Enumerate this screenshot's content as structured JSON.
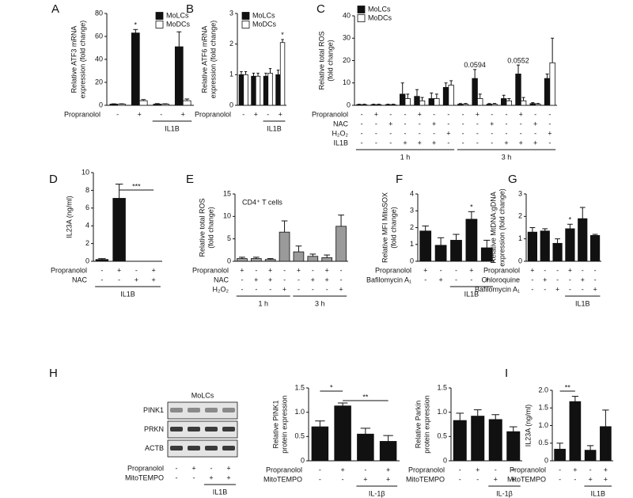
{
  "chart_data": [
    {
      "type": "bar",
      "panel": "A",
      "ylabel": [
        "Relative ATF3 mRNA",
        "expression (fold change)"
      ],
      "ylim": [
        0,
        80
      ],
      "yticks": [
        0,
        20,
        40,
        60,
        80
      ],
      "series": [
        {
          "name": "MoLCs",
          "color": "#111111",
          "values": [
            1,
            63,
            1,
            51
          ],
          "errors": [
            0.3,
            3,
            0.5,
            13
          ]
        },
        {
          "name": "MoDCs",
          "color": "#ffffff",
          "values": [
            1,
            4,
            1,
            4
          ],
          "errors": [
            0.3,
            1,
            0.3,
            1.5
          ]
        }
      ],
      "conditions": [
        {
          "name": "Propranolol",
          "signs": [
            "-",
            "+",
            "-",
            "+"
          ]
        }
      ],
      "groups": [
        "IL1B"
      ],
      "annotations": [
        "*"
      ]
    },
    {
      "type": "bar",
      "panel": "B",
      "ylabel": [
        "Relative ATF6 mRNA",
        "expression (fold change)"
      ],
      "ylim": [
        0,
        3
      ],
      "yticks": [
        0,
        1,
        2,
        3
      ],
      "series": [
        {
          "name": "MoLCs",
          "color": "#111111",
          "values": [
            1,
            0.95,
            0.95,
            1
          ],
          "errors": [
            0.1,
            0.1,
            0.1,
            0.15
          ]
        },
        {
          "name": "MoDCs",
          "color": "#ffffff",
          "values": [
            1,
            0.95,
            1.05,
            2.05
          ],
          "errors": [
            0.1,
            0.1,
            0.15,
            0.1
          ]
        }
      ],
      "conditions": [
        {
          "name": "Propranolol",
          "signs": [
            "-",
            "+",
            "-",
            "+"
          ]
        }
      ],
      "groups": [
        "IL1B"
      ],
      "annotations": [
        "*"
      ]
    },
    {
      "type": "bar",
      "panel": "C",
      "ylabel": [
        "Relative total ROS",
        "(fold change)"
      ],
      "ylim": [
        0,
        40
      ],
      "yticks": [
        0,
        10,
        20,
        30,
        40
      ],
      "series": [
        {
          "name": "MoLCs",
          "color": "#111111",
          "values": [
            0.3,
            0.3,
            0.3,
            5,
            4,
            3,
            8,
            0.5,
            12,
            0.5,
            3,
            14,
            0.8,
            12
          ],
          "errors": [
            0.2,
            0.2,
            0.2,
            5,
            3,
            2.5,
            2,
            0.3,
            4,
            0.3,
            1.5,
            4,
            0.4,
            2
          ]
        },
        {
          "name": "MoDCs",
          "color": "#ffffff",
          "values": [
            0.3,
            0.3,
            0.3,
            3,
            2,
            3,
            9,
            0.5,
            3,
            0.5,
            2,
            2,
            0.5,
            19
          ],
          "errors": [
            0.2,
            0.2,
            0.2,
            2,
            1.5,
            2,
            2,
            0.3,
            2,
            0.3,
            1,
            1.5,
            0.3,
            11
          ]
        }
      ],
      "conditions": [
        {
          "name": "Propranolol",
          "signs": [
            "-",
            "+",
            "-",
            "-",
            "+",
            "-",
            "-",
            "-",
            "+",
            "-",
            "-",
            "+",
            "-",
            "-"
          ]
        },
        {
          "name": "NAC",
          "signs": [
            "-",
            "-",
            "+",
            "-",
            "-",
            "+",
            "-",
            "-",
            "-",
            "+",
            "-",
            "-",
            "+",
            "-"
          ]
        },
        {
          "name": "H₂O₂",
          "signs": [
            "-",
            "-",
            "-",
            "-",
            "-",
            "-",
            "+",
            "-",
            "-",
            "-",
            "-",
            "-",
            "-",
            "+"
          ]
        },
        {
          "name": "IL1B",
          "signs": [
            "-",
            "-",
            "-",
            "+",
            "+",
            "+",
            "-",
            "-",
            "-",
            "-",
            "+",
            "+",
            "+",
            "-"
          ]
        }
      ],
      "groups": [
        "1 h",
        "3 h"
      ],
      "annotations": [
        "0.0594",
        "0.0552"
      ]
    },
    {
      "type": "bar",
      "panel": "D",
      "ylabel": [
        "IL23A (ng/ml)"
      ],
      "ylim": [
        0,
        10
      ],
      "yticks": [
        0,
        2,
        4,
        6,
        8,
        10
      ],
      "series": [
        {
          "color": "#111111",
          "values": [
            0.2,
            7.1,
            0,
            0
          ],
          "errors": [
            0.1,
            1.6,
            0,
            0
          ]
        }
      ],
      "conditions": [
        {
          "name": "Propranolol",
          "signs": [
            "-",
            "+",
            "-",
            "+"
          ]
        },
        {
          "name": "NAC",
          "signs": [
            "-",
            "-",
            "+",
            "+"
          ]
        }
      ],
      "groups": [
        "IL1B"
      ],
      "annotations": [
        "***"
      ]
    },
    {
      "type": "bar",
      "panel": "E",
      "ylabel": [
        "Relative total ROS",
        "(fold change)"
      ],
      "ylim": [
        0,
        15
      ],
      "yticks": [
        0,
        5,
        10,
        15
      ],
      "series": [
        {
          "color": "#9a9a9a",
          "values": [
            0.6,
            0.6,
            0.4,
            6.5,
            2.1,
            1.1,
            0.8,
            7.8
          ],
          "errors": [
            0.3,
            0.3,
            0.2,
            2.5,
            1.3,
            0.5,
            0.6,
            2.5
          ]
        }
      ],
      "conditions": [
        {
          "name": "Propranolol",
          "signs": [
            "+",
            "-",
            "+",
            "-",
            "+",
            "-",
            "+",
            "-"
          ]
        },
        {
          "name": "NAC",
          "signs": [
            "-",
            "+",
            "+",
            "-",
            "-",
            "+",
            "+",
            "-"
          ]
        },
        {
          "name": "H₂O₂",
          "signs": [
            "-",
            "-",
            "-",
            "+",
            "-",
            "-",
            "-",
            "+"
          ]
        }
      ],
      "groups": [
        "1 h",
        "3 h"
      ],
      "annotations": [
        "CD4⁺ T cells"
      ]
    },
    {
      "type": "bar",
      "panel": "F",
      "ylabel": [
        "Relative MFI MitoSOX",
        "(fold change)"
      ],
      "ylim": [
        0,
        4
      ],
      "yticks": [
        0,
        1,
        2,
        3,
        4
      ],
      "series": [
        {
          "color": "#111111",
          "values": [
            1.8,
            0.95,
            1.25,
            2.5,
            0.8
          ],
          "errors": [
            0.3,
            0.45,
            0.35,
            0.45,
            0.45
          ]
        }
      ],
      "conditions": [
        {
          "name": "Propranolol",
          "signs": [
            "+",
            "-",
            "-",
            "+",
            "-"
          ]
        },
        {
          "name": "Bafilomycin A₁",
          "signs": [
            "-",
            "+",
            "-",
            "-",
            "+"
          ]
        }
      ],
      "groups": [
        "IL1B"
      ],
      "annotations": [
        "*"
      ]
    },
    {
      "type": "bar",
      "panel": "G",
      "ylabel": [
        "Relative MtDNA:gDNA",
        "expression (fold change)"
      ],
      "ylim": [
        0,
        3
      ],
      "yticks": [
        0,
        1,
        2,
        3
      ],
      "series": [
        {
          "color": "#111111",
          "values": [
            1.3,
            1.35,
            0.8,
            1.45,
            1.9,
            1.15
          ],
          "errors": [
            0.2,
            0.1,
            0.2,
            0.2,
            0.5,
            0.05
          ]
        }
      ],
      "conditions": [
        {
          "name": "Propranolol",
          "signs": [
            "+",
            "-",
            "-",
            "+",
            "-",
            "-"
          ]
        },
        {
          "name": "Chloroquine",
          "signs": [
            "-",
            "+",
            "-",
            "-",
            "+",
            "-"
          ]
        },
        {
          "name": "Bafilomycin A₁",
          "signs": [
            "-",
            "-",
            "+",
            "-",
            "-",
            "+"
          ]
        }
      ],
      "groups": [
        "IL1B"
      ],
      "annotations": [
        "*"
      ]
    },
    {
      "type": "bar",
      "ylabel": [
        "Relative PINK1",
        "protein expression"
      ],
      "ylim": [
        0,
        1.5
      ],
      "yticks": [
        0,
        0.5,
        {
          "value": 1,
          "label": "1.0"
        },
        1.5
      ],
      "series": [
        {
          "color": "#111111",
          "values": [
            0.7,
            1.13,
            0.55,
            0.4
          ],
          "errors": [
            0.12,
            0.06,
            0.12,
            0.12
          ]
        }
      ],
      "conditions": [
        {
          "name": "Propranolol",
          "signs": [
            "-",
            "+",
            "-",
            "+"
          ]
        },
        {
          "name": "MitoTEMPO",
          "signs": [
            "-",
            "-",
            "+",
            "+"
          ]
        }
      ],
      "groups": [
        "IL-1β"
      ],
      "annotations": [
        "*",
        "**"
      ]
    },
    {
      "type": "bar",
      "ylabel": [
        "Relative Parkin",
        "protein expression"
      ],
      "ylim": [
        0,
        1.5
      ],
      "yticks": [
        0,
        0.5,
        {
          "value": 1,
          "label": "1.0"
        },
        1.5
      ],
      "series": [
        {
          "color": "#111111",
          "values": [
            0.83,
            0.92,
            0.85,
            0.6
          ],
          "errors": [
            0.15,
            0.13,
            0.1,
            0.1
          ]
        }
      ],
      "conditions": [
        {
          "name": "Propranolol",
          "signs": [
            "-",
            "+",
            "-",
            "+"
          ]
        },
        {
          "name": "MitoTEMPO",
          "signs": [
            "-",
            "-",
            "+",
            "+"
          ]
        }
      ],
      "groups": [
        "IL-1β"
      ]
    },
    {
      "type": "bar",
      "panel": "I",
      "ylabel": [
        "IL23A (ng/ml)"
      ],
      "ylim": [
        0,
        2
      ],
      "yticks": [
        0,
        0.5,
        {
          "value": 1,
          "label": "1.0"
        },
        1.5,
        {
          "value": 2,
          "label": "2.0"
        }
      ],
      "series": [
        {
          "color": "#111111",
          "values": [
            0.33,
            1.68,
            0.3,
            0.97
          ],
          "errors": [
            0.17,
            0.15,
            0.13,
            0.47
          ]
        }
      ],
      "conditions": [
        {
          "name": "Propranolol",
          "signs": [
            "-",
            "+",
            "-",
            "+"
          ]
        },
        {
          "name": "MitoTEMPO",
          "signs": [
            "-",
            "-",
            "+",
            "+"
          ]
        }
      ],
      "groups": [
        "IL1B"
      ],
      "annotations": [
        "**"
      ]
    }
  ],
  "blot": {
    "panel": "H",
    "title": "MoLCs",
    "rows": [
      "PINK1",
      "PRKN",
      "ACTB"
    ],
    "conditions": [
      {
        "name": "Propranolol",
        "signs": [
          "-",
          "+",
          "-",
          "+"
        ]
      },
      {
        "name": "MitoTEMPO",
        "signs": [
          "-",
          "-",
          "+",
          "+"
        ]
      }
    ],
    "group": "IL1B"
  }
}
